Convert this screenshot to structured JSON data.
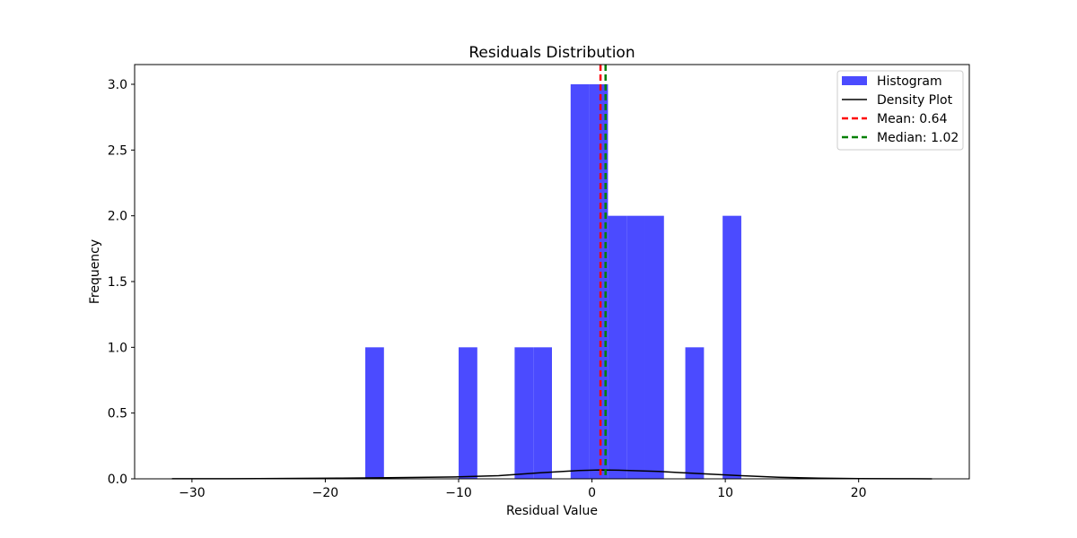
{
  "chart_data": {
    "type": "bar",
    "title": "Residuals Distribution",
    "xlabel": "Residual Value",
    "ylabel": "Frequency",
    "xlim": [
      -34.3,
      28.3
    ],
    "ylim": [
      0,
      3.15
    ],
    "xticks": [
      -30,
      -20,
      -10,
      0,
      10,
      20
    ],
    "xtick_labels": [
      "−30",
      "−20",
      "−10",
      "0",
      "10",
      "20"
    ],
    "yticks": [
      0.0,
      0.5,
      1.0,
      1.5,
      2.0,
      2.5,
      3.0
    ],
    "ytick_labels": [
      "0.0",
      "0.5",
      "1.0",
      "1.5",
      "2.0",
      "2.5",
      "3.0"
    ],
    "grid": false,
    "legend_position": "top-right",
    "series": [
      {
        "name": "Histogram",
        "kind": "histogram",
        "color": "#4b4bff",
        "bins": [
          {
            "x0": -17.0,
            "x1": -15.6,
            "count": 1
          },
          {
            "x0": -10.0,
            "x1": -8.6,
            "count": 1
          },
          {
            "x0": -5.8,
            "x1": -4.4,
            "count": 1
          },
          {
            "x0": -4.4,
            "x1": -3.0,
            "count": 1
          },
          {
            "x0": -1.6,
            "x1": -0.2,
            "count": 3
          },
          {
            "x0": -0.2,
            "x1": 1.2,
            "count": 3
          },
          {
            "x0": 1.2,
            "x1": 2.6,
            "count": 2
          },
          {
            "x0": 2.6,
            "x1": 4.0,
            "count": 2
          },
          {
            "x0": 4.0,
            "x1": 5.4,
            "count": 2
          },
          {
            "x0": 7.0,
            "x1": 8.4,
            "count": 1
          },
          {
            "x0": 9.8,
            "x1": 11.2,
            "count": 2
          }
        ]
      },
      {
        "name": "Density Plot",
        "kind": "line",
        "color": "#000000",
        "x": [
          -31.5,
          -28,
          -25,
          -22,
          -19,
          -16,
          -13,
          -10,
          -7,
          -4,
          -1,
          0.6,
          2,
          5,
          8,
          11,
          14,
          17,
          20,
          23,
          25.5
        ],
        "y": [
          0.0005,
          0.001,
          0.002,
          0.003,
          0.005,
          0.008,
          0.011,
          0.015,
          0.024,
          0.045,
          0.063,
          0.067,
          0.066,
          0.056,
          0.04,
          0.025,
          0.012,
          0.005,
          0.002,
          0.0007,
          0.0003
        ]
      },
      {
        "name": "Mean: 0.64",
        "kind": "vline",
        "color": "#ff0000",
        "x": 0.64
      },
      {
        "name": "Median: 1.02",
        "kind": "vline",
        "color": "#008000",
        "x": 1.02
      }
    ]
  }
}
